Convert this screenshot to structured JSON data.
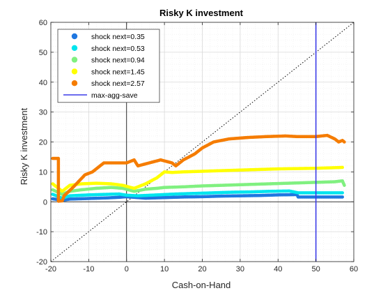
{
  "chart_data": {
    "type": "scatter",
    "title": "Risky K investment",
    "xlabel": "Cash-on-Hand",
    "ylabel": "Risky K investment",
    "xlim": [
      -20,
      60
    ],
    "ylim": [
      -20,
      60
    ],
    "xticks": [
      -20,
      -10,
      0,
      10,
      20,
      30,
      40,
      50,
      60
    ],
    "yticks": [
      -20,
      -10,
      0,
      10,
      20,
      30,
      40,
      50,
      60
    ],
    "grid": true,
    "minor_grid": true,
    "legend_position": "top-left",
    "reference_lines": [
      {
        "kind": "diagonal",
        "style": "dotted",
        "color": "#000000"
      },
      {
        "kind": "vertical",
        "x": 0,
        "color": "#000000"
      },
      {
        "kind": "horizontal",
        "y": 0,
        "color": "#000000"
      }
    ],
    "series": [
      {
        "name": "shock next=0.35",
        "color": "#1f77e0",
        "points": [
          [
            -19.5,
            1
          ],
          [
            -17,
            0.5
          ],
          [
            -15,
            0.9
          ],
          [
            -10,
            1.1
          ],
          [
            -5,
            1.3
          ],
          [
            -2,
            1.5
          ],
          [
            0,
            1.7
          ],
          [
            2,
            1.5
          ],
          [
            5,
            1.2
          ],
          [
            10,
            1.4
          ],
          [
            15,
            1.6
          ],
          [
            20,
            1.7
          ],
          [
            25,
            1.9
          ],
          [
            30,
            2.0
          ],
          [
            35,
            2.1
          ],
          [
            40,
            2.3
          ],
          [
            45,
            2.4
          ],
          [
            45.3,
            1.6
          ],
          [
            50,
            1.6
          ],
          [
            55,
            1.6
          ],
          [
            57,
            1.6
          ]
        ]
      },
      {
        "name": "shock next=0.53",
        "color": "#00e5ee",
        "points": [
          [
            -19.5,
            2.5
          ],
          [
            -17,
            1.2
          ],
          [
            -15,
            2
          ],
          [
            -10,
            2.3
          ],
          [
            -5,
            2.5
          ],
          [
            -2,
            2.6
          ],
          [
            0,
            2.2
          ],
          [
            3,
            2.0
          ],
          [
            8,
            2.3
          ],
          [
            13,
            2.6
          ],
          [
            18,
            2.8
          ],
          [
            23,
            3.0
          ],
          [
            28,
            3.2
          ],
          [
            33,
            3.3
          ],
          [
            38,
            3.5
          ],
          [
            43,
            3.6
          ],
          [
            45.3,
            3.0
          ],
          [
            50,
            3.0
          ],
          [
            55,
            3.0
          ],
          [
            57,
            3.0
          ]
        ]
      },
      {
        "name": "shock next=0.94",
        "color": "#80f080",
        "points": [
          [
            -19.5,
            4
          ],
          [
            -17,
            2.5
          ],
          [
            -15,
            3.5
          ],
          [
            -12,
            4
          ],
          [
            -8,
            4.5
          ],
          [
            -4,
            4.8
          ],
          [
            -1,
            4.5
          ],
          [
            2,
            3.5
          ],
          [
            5,
            4.2
          ],
          [
            8,
            4.5
          ],
          [
            10,
            4.8
          ],
          [
            15,
            5.0
          ],
          [
            20,
            5.3
          ],
          [
            25,
            5.5
          ],
          [
            30,
            5.7
          ],
          [
            35,
            5.9
          ],
          [
            40,
            6.1
          ],
          [
            45,
            6.3
          ],
          [
            50,
            6.5
          ],
          [
            55,
            6.7
          ],
          [
            57,
            7.0
          ],
          [
            57.5,
            5.5
          ]
        ]
      },
      {
        "name": "shock next=1.45",
        "color": "#ffff00",
        "points": [
          [
            -19.5,
            6
          ],
          [
            -17,
            3.5
          ],
          [
            -15,
            5.5
          ],
          [
            -12,
            6
          ],
          [
            -8,
            6.2
          ],
          [
            -4,
            6
          ],
          [
            -1,
            5.5
          ],
          [
            2,
            4.5
          ],
          [
            5,
            6
          ],
          [
            8,
            8
          ],
          [
            10,
            10
          ],
          [
            12,
            9.8
          ],
          [
            15,
            10
          ],
          [
            20,
            10.2
          ],
          [
            25,
            10.4
          ],
          [
            30,
            10.6
          ],
          [
            35,
            10.8
          ],
          [
            40,
            11
          ],
          [
            45,
            11.1
          ],
          [
            50,
            11.2
          ],
          [
            55,
            11.4
          ],
          [
            57,
            11.5
          ]
        ]
      },
      {
        "name": "shock next=2.57",
        "color": "#f57c00",
        "points": [
          [
            -19.5,
            14.5
          ],
          [
            -18,
            14.5
          ],
          [
            -18,
            0.2
          ],
          [
            -17,
            0.3
          ],
          [
            -16.5,
            2
          ],
          [
            -14,
            5
          ],
          [
            -11,
            9
          ],
          [
            -9,
            10
          ],
          [
            -7,
            12
          ],
          [
            -6,
            13
          ],
          [
            -3,
            13
          ],
          [
            0,
            13
          ],
          [
            2,
            14
          ],
          [
            3,
            12
          ],
          [
            6,
            13
          ],
          [
            9,
            14
          ],
          [
            12,
            13
          ],
          [
            13,
            12
          ],
          [
            15,
            14
          ],
          [
            18,
            16
          ],
          [
            20,
            18
          ],
          [
            23,
            20
          ],
          [
            27,
            21
          ],
          [
            32,
            21.5
          ],
          [
            37,
            21.8
          ],
          [
            42,
            22
          ],
          [
            45,
            21.8
          ],
          [
            50,
            21.8
          ],
          [
            53,
            22.2
          ],
          [
            55,
            21
          ],
          [
            56,
            20
          ],
          [
            57,
            20.5
          ],
          [
            57.5,
            20
          ]
        ]
      }
    ],
    "vertical_line": {
      "name": "max-agg-save",
      "x": 50,
      "color": "#3b3be8"
    },
    "colors": {
      "axes": "#262626",
      "grid": "#d9d9d9",
      "minor_grid": "#eeeeee"
    }
  }
}
